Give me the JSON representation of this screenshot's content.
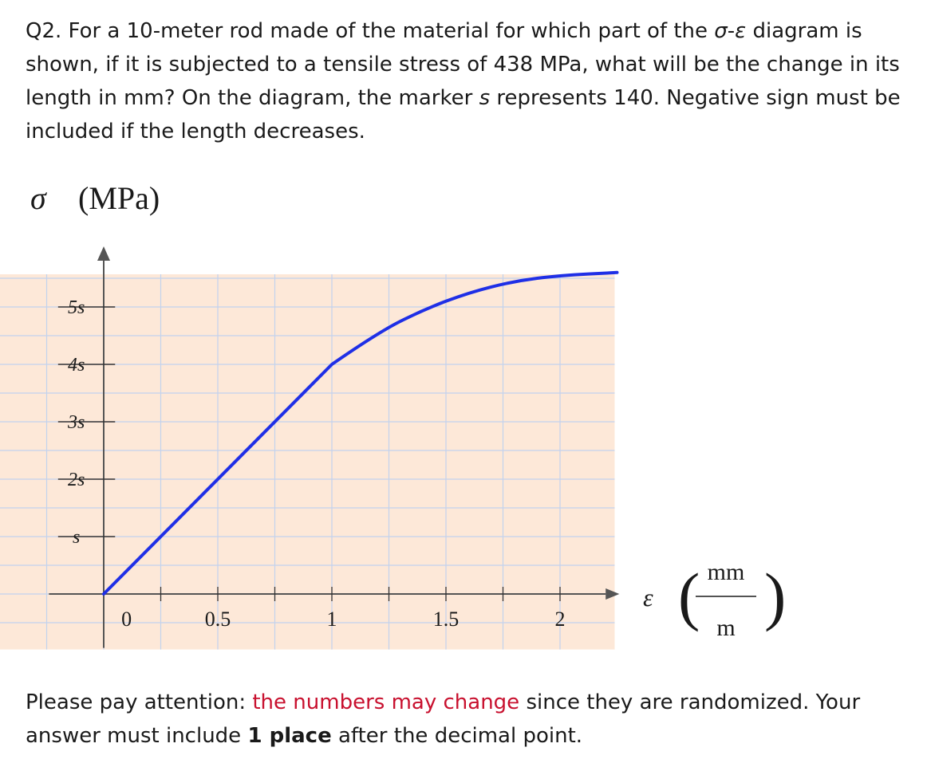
{
  "question": {
    "intro": "Q2. For a 10-meter rod made of the material for which part of the ",
    "sigma": "σ",
    "dash": "-",
    "epsilon": "ε",
    "rest_1": " diagram is shown, if it is subjected to a tensile stress of 438 MPa, what will be the change in its length in mm? On the diagram, the marker ",
    "s": "s",
    "rest_2": " represents 140. Negative sign must be included if the length decreases."
  },
  "note": {
    "lead": "Please pay attention: ",
    "highlight": "the numbers may change",
    "middle": " since they are randomized. Your answer must include ",
    "bold": "1 place",
    "tail": " after the decimal point."
  },
  "colors": {
    "curve": "#1f2fe6",
    "background": "#fde8d8",
    "grid": "#c2d2ee",
    "highlight": "#c8102e"
  },
  "chart_data": {
    "type": "line",
    "ylabel_symbol": "σ",
    "ylabel_unit": "(MPa)",
    "xlabel_symbol": "ε",
    "xlabel_unit_num": "mm",
    "xlabel_unit_den": "m",
    "y_tick_labels": [
      "s",
      "2s",
      "3s",
      "4s",
      "5s"
    ],
    "y_tick_values": [
      1,
      2,
      3,
      4,
      5
    ],
    "x_tick_labels": [
      "0",
      "0.5",
      "1",
      "1.5",
      "2"
    ],
    "x_tick_values": [
      0,
      0.5,
      1,
      1.5,
      2
    ],
    "xlim": [
      -0.5,
      2.25
    ],
    "ylim": [
      -0.8,
      5.5
    ],
    "grid": true,
    "series": [
      {
        "x": [
          0,
          1.0,
          1.2,
          1.4,
          1.6,
          1.8,
          2.0,
          2.25
        ],
        "y": [
          0,
          4.0,
          4.55,
          4.95,
          5.25,
          5.45,
          5.55,
          5.6
        ]
      }
    ]
  }
}
